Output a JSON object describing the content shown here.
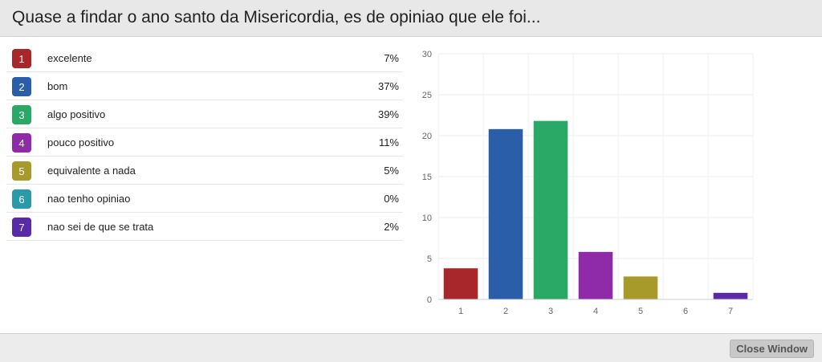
{
  "header": {
    "title": "Quase a findar o ano santo da Misericordia, es de opiniao que ele foi..."
  },
  "answers": [
    {
      "num": "1",
      "label": "excelente",
      "pct": "7%",
      "color": "#a8272a"
    },
    {
      "num": "2",
      "label": "bom",
      "pct": "37%",
      "color": "#2a5ea8"
    },
    {
      "num": "3",
      "label": "algo positivo",
      "pct": "39%",
      "color": "#2aa866"
    },
    {
      "num": "4",
      "label": "pouco positivo",
      "pct": "11%",
      "color": "#8f2aa8"
    },
    {
      "num": "5",
      "label": "equivalente a nada",
      "pct": "5%",
      "color": "#a89a2a"
    },
    {
      "num": "6",
      "label": "nao tenho opiniao",
      "pct": "0%",
      "color": "#2a9aa8"
    },
    {
      "num": "7",
      "label": "nao sei de que se trata",
      "pct": "2%",
      "color": "#5a2aa8"
    }
  ],
  "chart_data": {
    "type": "bar",
    "categories": [
      "1",
      "2",
      "3",
      "4",
      "5",
      "6",
      "7"
    ],
    "values": [
      3.8,
      20.8,
      21.8,
      5.8,
      2.8,
      0,
      0.8
    ],
    "colors": [
      "#a8272a",
      "#2a5ea8",
      "#2aa866",
      "#8f2aa8",
      "#a89a2a",
      "#2a9aa8",
      "#5a2aa8"
    ],
    "ylim": [
      0,
      30
    ],
    "yticks": [
      "0",
      "5",
      "10",
      "15",
      "20",
      "25",
      "30"
    ],
    "grid": true,
    "title": "",
    "xlabel": "",
    "ylabel": ""
  },
  "footer": {
    "close_label": "Close Window"
  }
}
